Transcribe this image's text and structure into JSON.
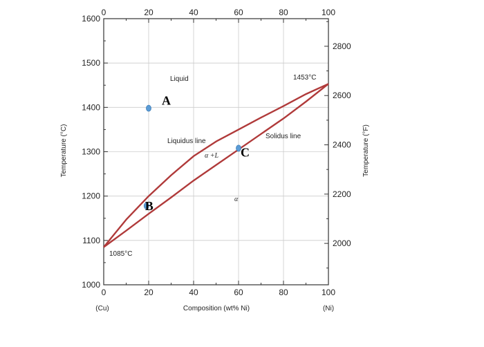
{
  "chart_data": {
    "type": "line",
    "xlabel": "Composition (wt% Ni)",
    "ylabel_left": "Temperature (°C)",
    "ylabel_right": "Temperature (°F)",
    "xlim": [
      0,
      100
    ],
    "ylim": [
      1000,
      1600
    ],
    "x_ticks": [
      "0",
      "20",
      "40",
      "60",
      "80",
      "100"
    ],
    "y_ticks": [
      "1000",
      "1100",
      "1200",
      "1300",
      "1400",
      "1500",
      "1600"
    ],
    "y_right_ticks": [
      "2000",
      "2200",
      "2400",
      "2600",
      "2800"
    ],
    "x_end_labels": {
      "left": "(Cu)",
      "right": "(Ni)"
    },
    "grid": true,
    "series": [
      {
        "name": "Liquidus line",
        "x": [
          0,
          10,
          20,
          30,
          40,
          50,
          60,
          70,
          80,
          90,
          100
        ],
        "y": [
          1085,
          1147,
          1200,
          1247,
          1290,
          1323,
          1350,
          1377,
          1403,
          1430,
          1453
        ]
      },
      {
        "name": "Solidus line",
        "x": [
          0,
          10,
          20,
          30,
          40,
          50,
          60,
          70,
          80,
          90,
          100
        ],
        "y": [
          1085,
          1122,
          1160,
          1197,
          1235,
          1270,
          1305,
          1340,
          1375,
          1413,
          1453
        ]
      }
    ],
    "points": [
      {
        "label": "A",
        "x": 20,
        "y": 1398
      },
      {
        "label": "B",
        "x": 19,
        "y": 1178
      },
      {
        "label": "C",
        "x": 60,
        "y": 1308
      }
    ],
    "annotations": {
      "liquid": "Liquid",
      "alpha_l": "α +L",
      "alpha": "α",
      "mp_ni": "1453°C",
      "mp_cu": "1085°C"
    },
    "colors": {
      "curve": "#b03a3a",
      "point": "#5b9bd5",
      "grid": "#cccccc",
      "axis": "#333333"
    }
  }
}
